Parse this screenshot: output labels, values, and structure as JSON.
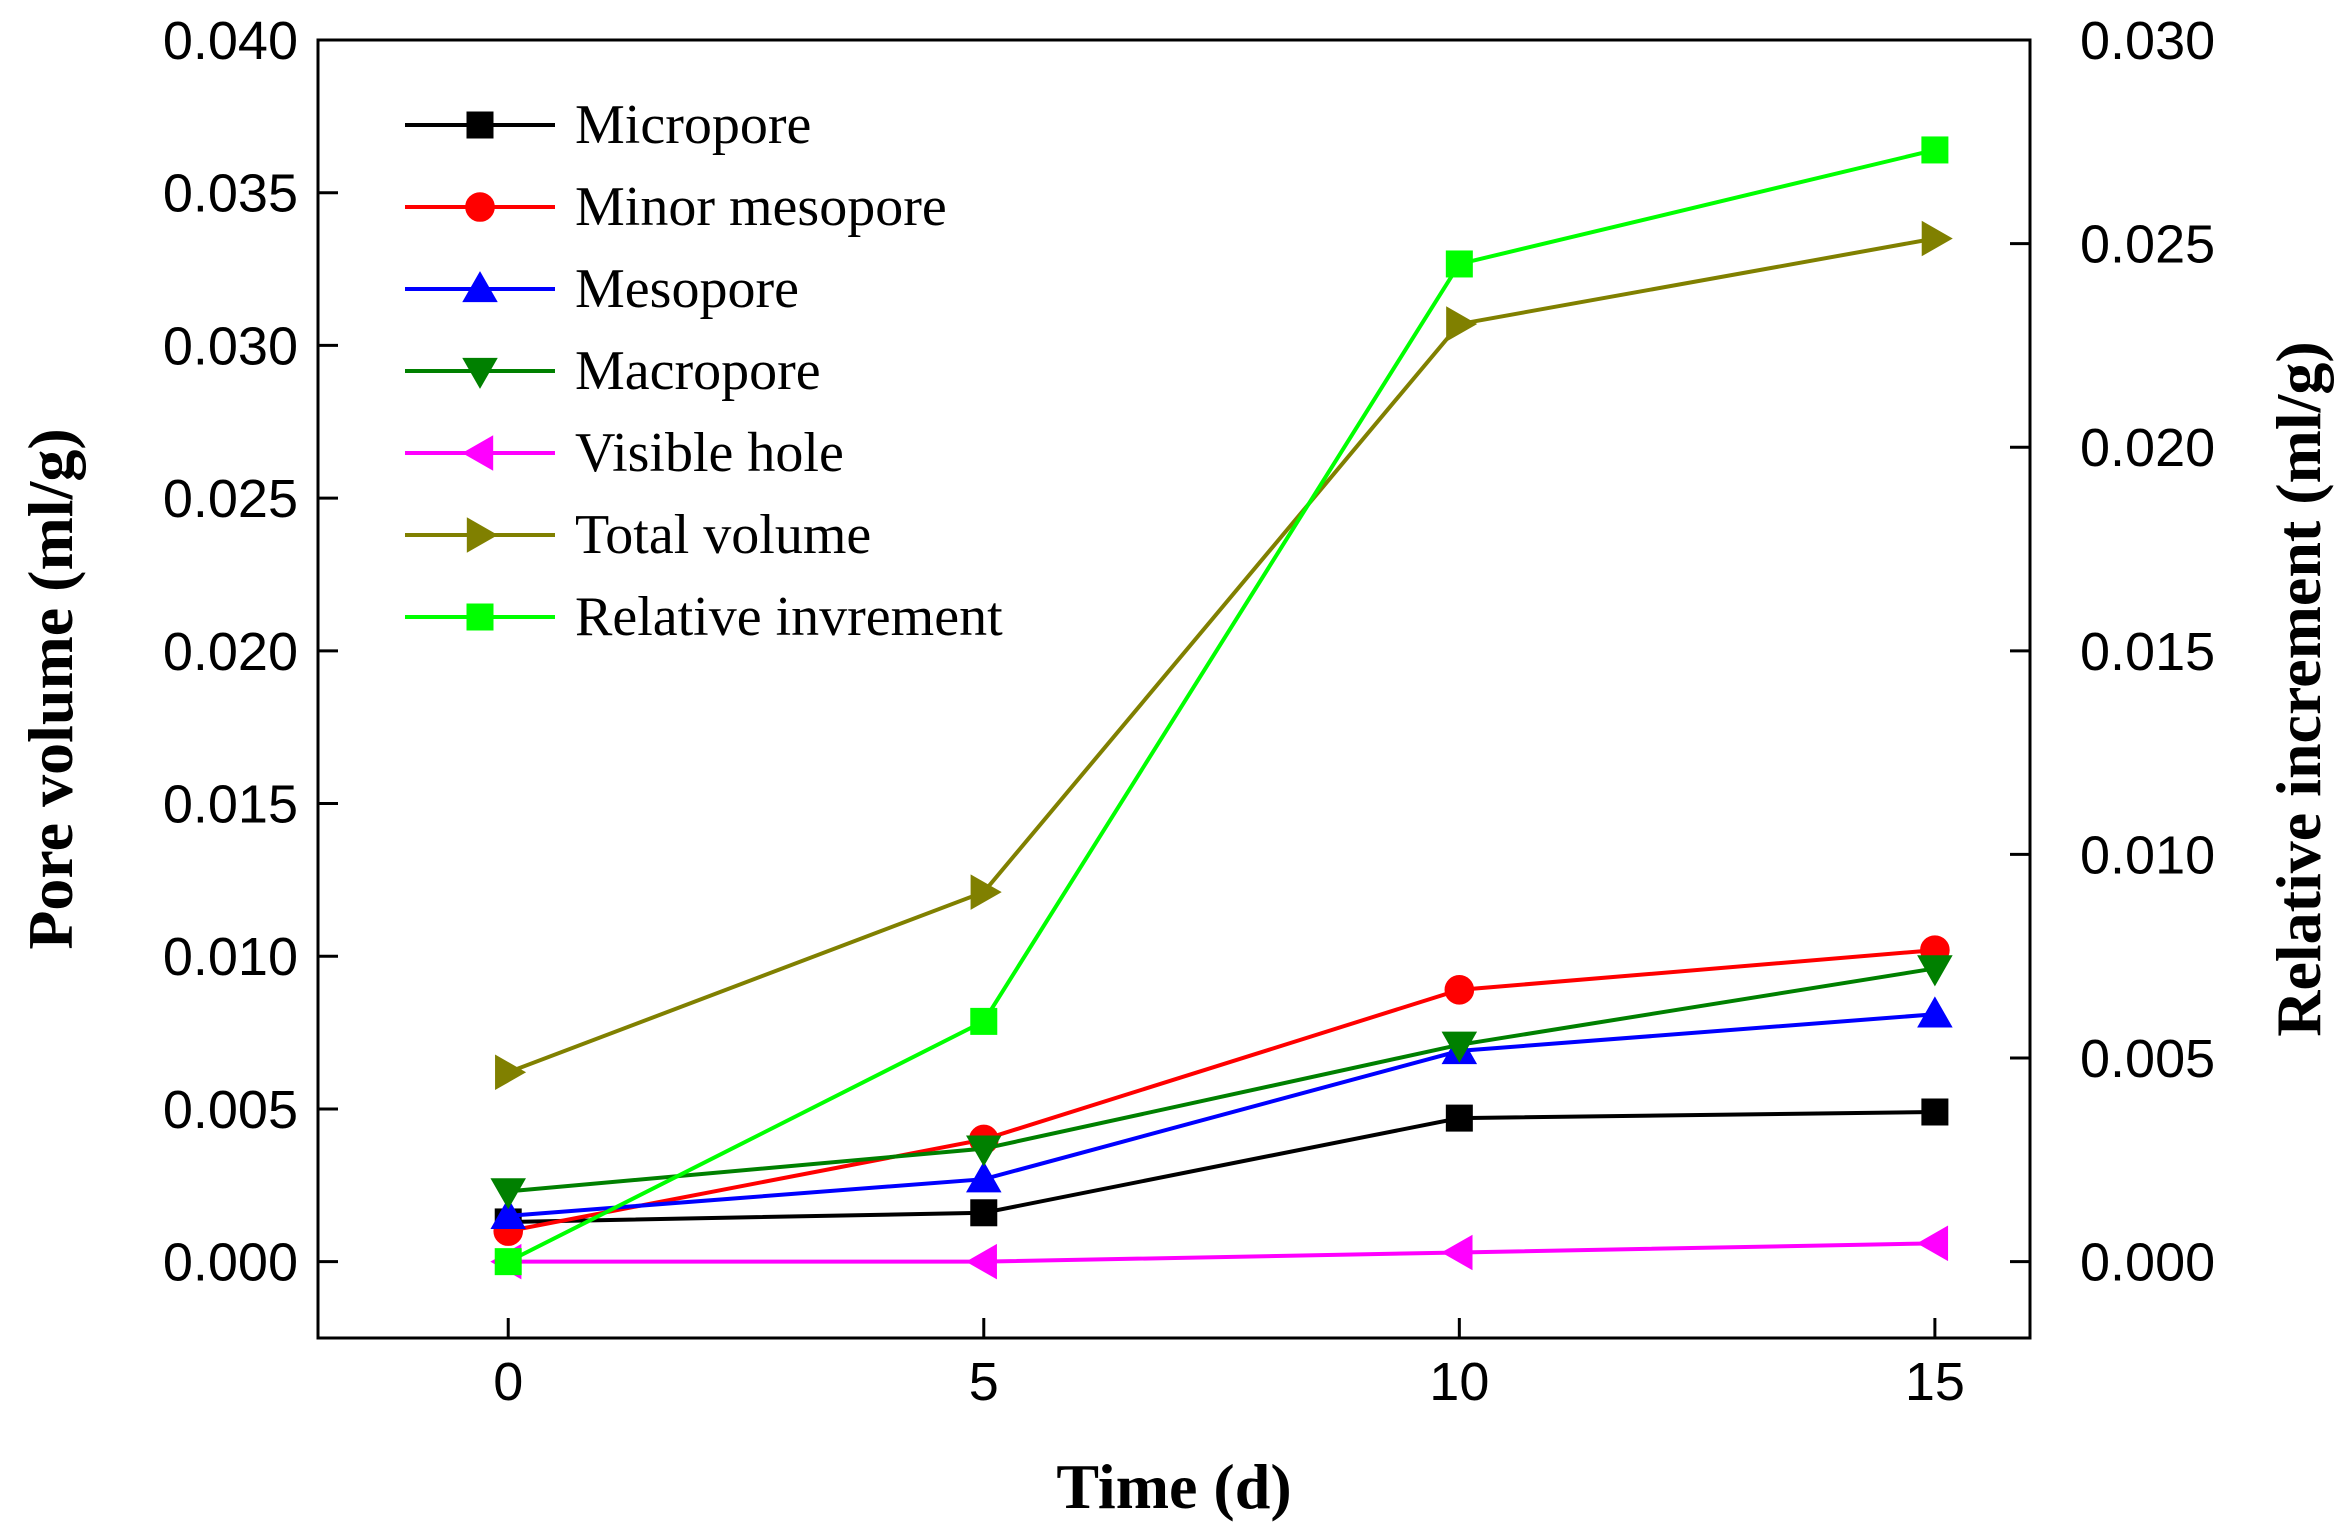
{
  "chart_data": {
    "type": "line",
    "title": "",
    "xlabel": "Time (d)",
    "ylabel": "Pore volume (ml/g)",
    "y2label": "Relative increment (ml/g)",
    "x": [
      0,
      5,
      10,
      15
    ],
    "xlim": [
      -2,
      16
    ],
    "ylim": [
      -0.0025,
      0.04
    ],
    "y2lim": [
      -0.001875,
      0.03
    ],
    "xticks": [
      "0",
      "5",
      "10",
      "15"
    ],
    "yticks": [
      "0.000",
      "0.005",
      "0.010",
      "0.015",
      "0.020",
      "0.025",
      "0.030",
      "0.035",
      "0.040"
    ],
    "y2ticks": [
      "0.000",
      "0.005",
      "0.010",
      "0.015",
      "0.020",
      "0.025",
      "0.030"
    ],
    "legend_position": "top-left",
    "grid": false,
    "series": [
      {
        "name": "Micropore",
        "axis": "left",
        "color": "#000000",
        "marker": "square",
        "values": [
          0.0013,
          0.0016,
          0.0047,
          0.0049
        ]
      },
      {
        "name": "Minor mesopore",
        "axis": "left",
        "color": "#ff0000",
        "marker": "circle",
        "values": [
          0.001,
          0.004,
          0.0089,
          0.0102
        ]
      },
      {
        "name": "Mesopore",
        "axis": "left",
        "color": "#0000ff",
        "marker": "triangle-up",
        "values": [
          0.0015,
          0.0027,
          0.0069,
          0.0081
        ]
      },
      {
        "name": "Macropore",
        "axis": "left",
        "color": "#008000",
        "marker": "triangle-down",
        "values": [
          0.0023,
          0.0037,
          0.0071,
          0.0096
        ]
      },
      {
        "name": "Visible hole",
        "axis": "left",
        "color": "#ff00ff",
        "marker": "triangle-left",
        "values": [
          0.0,
          0.0,
          0.0003,
          0.0006
        ]
      },
      {
        "name": "Total volume",
        "axis": "left",
        "color": "#808000",
        "marker": "triangle-right",
        "values": [
          0.0062,
          0.0121,
          0.0307,
          0.0335
        ]
      },
      {
        "name": "Relative invrement",
        "axis": "right",
        "color": "#00ff00",
        "marker": "square",
        "values": [
          0.0,
          0.0059,
          0.0245,
          0.0273
        ]
      }
    ]
  }
}
